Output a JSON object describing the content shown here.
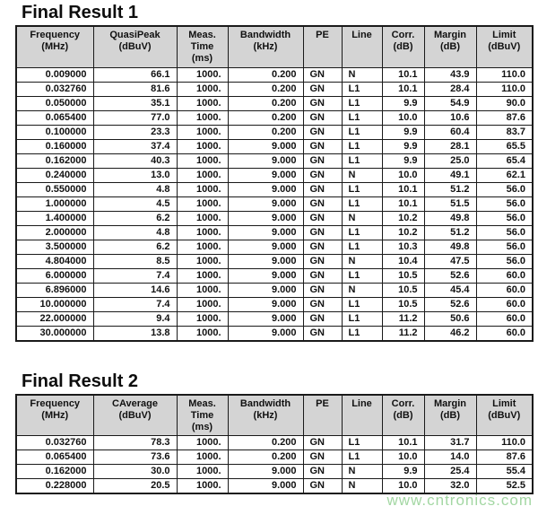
{
  "page": {
    "watermark": "www.cntronics.com"
  },
  "colors": {
    "header_bg": "#d4d4d4",
    "table_border": "#1a1a1a",
    "text": "#111111",
    "watermark": "#a3d7a3",
    "page_bg": "#ffffff"
  },
  "tables": [
    {
      "title": "Final Result 1",
      "headers": [
        "Frequency\n(MHz)",
        "QuasiPeak\n(dBuV)",
        "Meas.\nTime\n(ms)",
        "Bandwidth\n(kHz)",
        "PE",
        "Line",
        "Corr.\n(dB)",
        "Margin\n(dB)",
        "Limit\n(dBuV)"
      ],
      "rows": [
        [
          "0.009000",
          "66.1",
          "1000.",
          "0.200",
          "GN",
          "N",
          "10.1",
          "43.9",
          "110.0"
        ],
        [
          "0.032760",
          "81.6",
          "1000.",
          "0.200",
          "GN",
          "L1",
          "10.1",
          "28.4",
          "110.0"
        ],
        [
          "0.050000",
          "35.1",
          "1000.",
          "0.200",
          "GN",
          "L1",
          "9.9",
          "54.9",
          "90.0"
        ],
        [
          "0.065400",
          "77.0",
          "1000.",
          "0.200",
          "GN",
          "L1",
          "10.0",
          "10.6",
          "87.6"
        ],
        [
          "0.100000",
          "23.3",
          "1000.",
          "0.200",
          "GN",
          "L1",
          "9.9",
          "60.4",
          "83.7"
        ],
        [
          "0.160000",
          "37.4",
          "1000.",
          "9.000",
          "GN",
          "L1",
          "9.9",
          "28.1",
          "65.5"
        ],
        [
          "0.162000",
          "40.3",
          "1000.",
          "9.000",
          "GN",
          "L1",
          "9.9",
          "25.0",
          "65.4"
        ],
        [
          "0.240000",
          "13.0",
          "1000.",
          "9.000",
          "GN",
          "N",
          "10.0",
          "49.1",
          "62.1"
        ],
        [
          "0.550000",
          "4.8",
          "1000.",
          "9.000",
          "GN",
          "L1",
          "10.1",
          "51.2",
          "56.0"
        ],
        [
          "1.000000",
          "4.5",
          "1000.",
          "9.000",
          "GN",
          "L1",
          "10.1",
          "51.5",
          "56.0"
        ],
        [
          "1.400000",
          "6.2",
          "1000.",
          "9.000",
          "GN",
          "N",
          "10.2",
          "49.8",
          "56.0"
        ],
        [
          "2.000000",
          "4.8",
          "1000.",
          "9.000",
          "GN",
          "L1",
          "10.2",
          "51.2",
          "56.0"
        ],
        [
          "3.500000",
          "6.2",
          "1000.",
          "9.000",
          "GN",
          "L1",
          "10.3",
          "49.8",
          "56.0"
        ],
        [
          "4.804000",
          "8.5",
          "1000.",
          "9.000",
          "GN",
          "N",
          "10.4",
          "47.5",
          "56.0"
        ],
        [
          "6.000000",
          "7.4",
          "1000.",
          "9.000",
          "GN",
          "L1",
          "10.5",
          "52.6",
          "60.0"
        ],
        [
          "6.896000",
          "14.6",
          "1000.",
          "9.000",
          "GN",
          "N",
          "10.5",
          "45.4",
          "60.0"
        ],
        [
          "10.000000",
          "7.4",
          "1000.",
          "9.000",
          "GN",
          "L1",
          "10.5",
          "52.6",
          "60.0"
        ],
        [
          "22.000000",
          "9.4",
          "1000.",
          "9.000",
          "GN",
          "L1",
          "11.2",
          "50.6",
          "60.0"
        ],
        [
          "30.000000",
          "13.8",
          "1000.",
          "9.000",
          "GN",
          "L1",
          "11.2",
          "46.2",
          "60.0"
        ]
      ]
    },
    {
      "title": "Final Result 2",
      "headers": [
        "Frequency\n(MHz)",
        "CAverage\n(dBuV)",
        "Meas.\nTime\n(ms)",
        "Bandwidth\n(kHz)",
        "PE",
        "Line",
        "Corr.\n(dB)",
        "Margin\n(dB)",
        "Limit\n(dBuV)"
      ],
      "rows": [
        [
          "0.032760",
          "78.3",
          "1000.",
          "0.200",
          "GN",
          "L1",
          "10.1",
          "31.7",
          "110.0"
        ],
        [
          "0.065400",
          "73.6",
          "1000.",
          "0.200",
          "GN",
          "L1",
          "10.0",
          "14.0",
          "87.6"
        ],
        [
          "0.162000",
          "30.0",
          "1000.",
          "9.000",
          "GN",
          "N",
          "9.9",
          "25.4",
          "55.4"
        ],
        [
          "0.228000",
          "20.5",
          "1000.",
          "9.000",
          "GN",
          "N",
          "10.0",
          "32.0",
          "52.5"
        ]
      ]
    }
  ]
}
